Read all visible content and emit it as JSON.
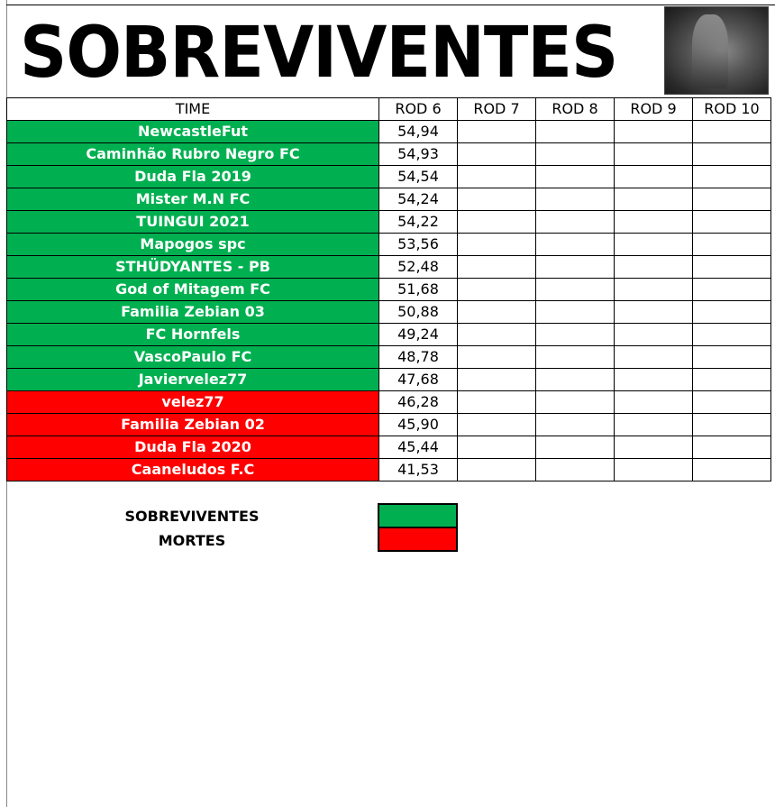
{
  "title": "SOBREVIVENTES",
  "header": {
    "team": "TIME",
    "rounds": [
      "ROD 6",
      "ROD 7",
      "ROD 8",
      "ROD 9",
      "ROD 10"
    ]
  },
  "colors": {
    "alive": "#00b050",
    "dead": "#ff0000"
  },
  "rows": [
    {
      "team": "NewcastleFut",
      "rod6": "54,94",
      "status": "alive"
    },
    {
      "team": "Caminhão Rubro Negro FC",
      "rod6": "54,93",
      "status": "alive"
    },
    {
      "team": "Duda Fla 2019",
      "rod6": "54,54",
      "status": "alive"
    },
    {
      "team": "Mister M.N FC",
      "rod6": "54,24",
      "status": "alive"
    },
    {
      "team": "TUINGUI 2021",
      "rod6": "54,22",
      "status": "alive"
    },
    {
      "team": "Mapogos spc",
      "rod6": "53,56",
      "status": "alive"
    },
    {
      "team": "STHÜDYANTES - PB",
      "rod6": "52,48",
      "status": "alive"
    },
    {
      "team": "God of Mitagem FC",
      "rod6": "51,68",
      "status": "alive"
    },
    {
      "team": "Familia Zebian 03",
      "rod6": "50,88",
      "status": "alive"
    },
    {
      "team": "FC Hornfels",
      "rod6": "49,24",
      "status": "alive"
    },
    {
      "team": "VascoPaulo FC",
      "rod6": "48,78",
      "status": "alive"
    },
    {
      "team": "Javiervelez77",
      "rod6": "47,68",
      "status": "alive"
    },
    {
      "team": "velez77",
      "rod6": "46,28",
      "status": "dead"
    },
    {
      "team": "Familia Zebian 02",
      "rod6": "45,90",
      "status": "dead"
    },
    {
      "team": "Duda Fla 2020",
      "rod6": "45,44",
      "status": "dead"
    },
    {
      "team": "Caaneludos F.C",
      "rod6": "41,53",
      "status": "dead"
    }
  ],
  "legend": {
    "alive_label": "SOBREVIVENTES",
    "dead_label": "MORTES"
  }
}
